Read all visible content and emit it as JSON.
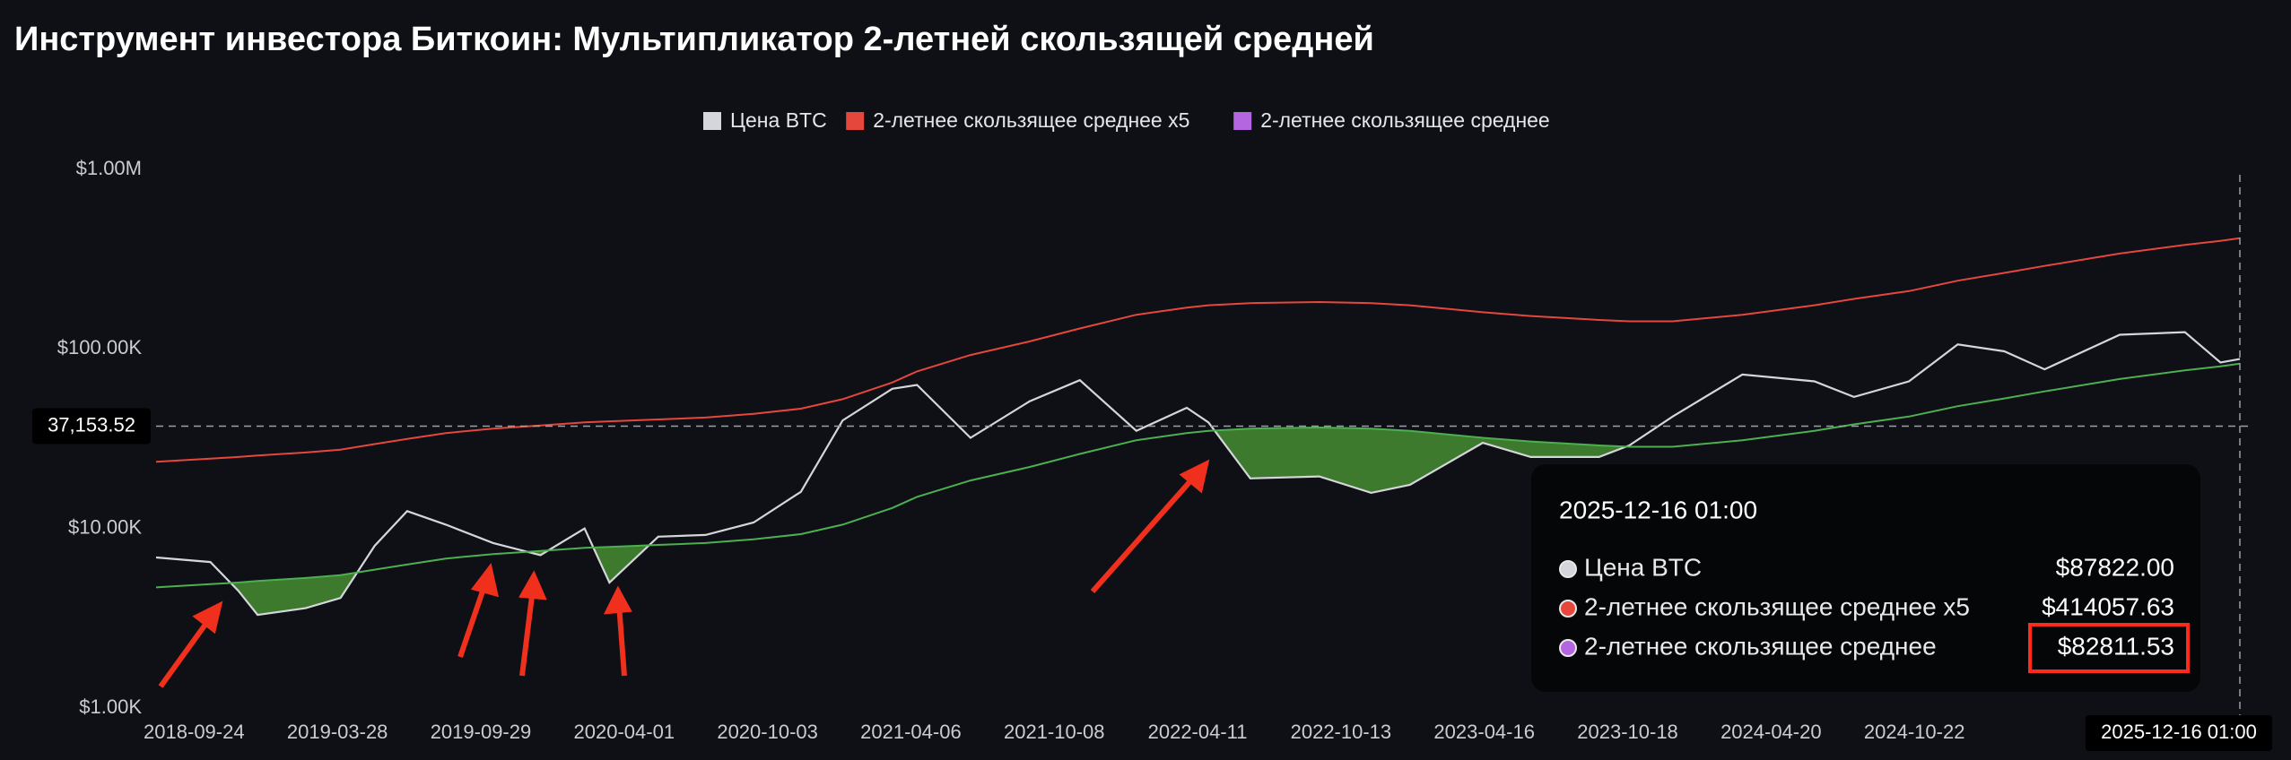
{
  "chart_data": {
    "type": "line",
    "title": "Инструмент инвестора Биткоин: Мультипликатор 2-летней скользящей средней",
    "log_y": true,
    "legend": "top",
    "ylim": [
      1000,
      1000000
    ],
    "yticks": [
      {
        "value": 1000,
        "label": "$1.00K"
      },
      {
        "value": 10000,
        "label": "$10.00K"
      },
      {
        "value": 100000,
        "label": "$100.00K"
      },
      {
        "value": 1000000,
        "label": "$1.00M"
      }
    ],
    "xlim": [
      "2018-08-06",
      "2025-12-16"
    ],
    "xticks": [
      "2018-09-24",
      "2019-03-28",
      "2019-09-29",
      "2020-04-01",
      "2020-10-03",
      "2021-04-06",
      "2021-10-08",
      "2022-04-11",
      "2022-10-13",
      "2023-04-16",
      "2023-10-18",
      "2024-04-20",
      "2024-10-22"
    ],
    "x": [
      "2018-08-06",
      "2018-10-15",
      "2018-11-20",
      "2018-12-15",
      "2019-02-15",
      "2019-04-01",
      "2019-05-15",
      "2019-06-26",
      "2019-08-15",
      "2019-10-15",
      "2019-12-15",
      "2020-02-10",
      "2020-03-13",
      "2020-05-15",
      "2020-07-15",
      "2020-09-15",
      "2020-11-15",
      "2021-01-08",
      "2021-03-13",
      "2021-04-14",
      "2021-06-22",
      "2021-09-06",
      "2021-11-10",
      "2022-01-22",
      "2022-03-28",
      "2022-04-25",
      "2022-06-18",
      "2022-09-15",
      "2022-11-21",
      "2023-01-10",
      "2023-04-14",
      "2023-06-15",
      "2023-09-11",
      "2023-10-20",
      "2023-12-15",
      "2024-03-14",
      "2024-06-15",
      "2024-08-05",
      "2024-10-15",
      "2024-12-17",
      "2025-02-15",
      "2025-04-08",
      "2025-07-14",
      "2025-10-06",
      "2025-11-21",
      "2025-12-16"
    ],
    "series": [
      {
        "name": "Цена BTC",
        "color": "#d4d6db",
        "values": [
          6900,
          6500,
          4500,
          3300,
          3600,
          4100,
          8000,
          12500,
          10500,
          8300,
          7100,
          10000,
          5000,
          9000,
          9200,
          10800,
          16000,
          40000,
          60000,
          63000,
          32000,
          51000,
          67000,
          35000,
          47000,
          39000,
          19000,
          19500,
          15800,
          17500,
          30000,
          25000,
          25000,
          29000,
          42000,
          72000,
          66000,
          54000,
          66000,
          106000,
          97000,
          77000,
          120000,
          124000,
          84000,
          87822
        ]
      },
      {
        "name": "2-летнее скользящее среднее x5",
        "color": "#e5473d",
        "values": [
          23500,
          24500,
          25000,
          25500,
          26500,
          27500,
          29500,
          31500,
          34000,
          36000,
          37500,
          39000,
          39500,
          40500,
          41500,
          43500,
          46500,
          52500,
          65000,
          75000,
          92500,
          110000,
          130000,
          155000,
          170000,
          175000,
          180000,
          182500,
          180000,
          175000,
          160000,
          152500,
          145000,
          142500,
          142500,
          155000,
          175000,
          190000,
          210000,
          240000,
          265000,
          290000,
          340000,
          380000,
          400000,
          414057.63
        ]
      },
      {
        "name": "2-летнее скользящее среднее",
        "color": "#b366e0",
        "line_color": "#4caf50",
        "values": [
          4700,
          4900,
          5000,
          5100,
          5300,
          5500,
          5900,
          6300,
          6800,
          7200,
          7500,
          7800,
          7900,
          8100,
          8300,
          8700,
          9300,
          10500,
          13000,
          15000,
          18500,
          22000,
          26000,
          31000,
          34000,
          35000,
          36000,
          36500,
          36000,
          35000,
          32000,
          30500,
          29000,
          28500,
          28500,
          31000,
          35000,
          38000,
          42000,
          48000,
          53000,
          58000,
          68000,
          76000,
          80000,
          82811.53
        ]
      }
    ],
    "fill_below_color": "#3d7a2e",
    "crosshair": {
      "y": {
        "value": 37153.52,
        "label": "37,153.52"
      },
      "x_label": "2025-12-16 01:00"
    },
    "tooltip": {
      "title": "2025-12-16 01:00",
      "values": [
        "$87822.00",
        "$414057.63",
        "$82811.53"
      ],
      "highlight": 2
    }
  }
}
